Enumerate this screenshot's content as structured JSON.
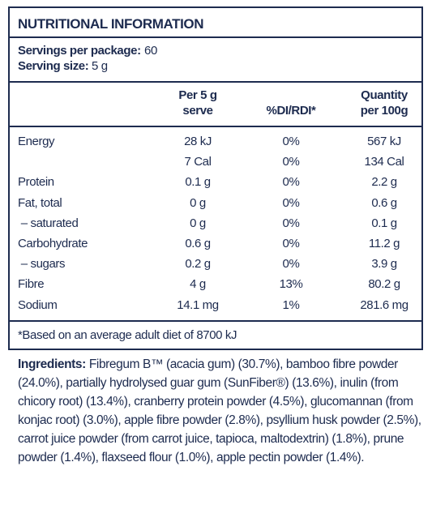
{
  "title": "NUTRITIONAL INFORMATION",
  "servings": [
    {
      "label": "Servings per package:",
      "value": "60"
    },
    {
      "label": "Serving size:",
      "value": "5 g"
    }
  ],
  "header": {
    "per_serve": [
      "Per 5 g",
      "serve"
    ],
    "di": "%DI/RDI*",
    "per100": [
      "Quantity",
      "per 100g"
    ]
  },
  "rows": [
    {
      "name": "Energy",
      "per_serve": "28 kJ",
      "di": "0%",
      "per100": "567 kJ"
    },
    {
      "per_serve": "7 Cal",
      "di": "0%",
      "per100": "134 Cal"
    },
    {
      "name": "Protein",
      "per_serve": "0.1 g",
      "di": "0%",
      "per100": "2.2 g"
    },
    {
      "name": "Fat, total",
      "per_serve": "0 g",
      "di": "0%",
      "per100": "0.6 g"
    },
    {
      "name": " – saturated",
      "per_serve": "0 g",
      "di": "0%",
      "per100": "0.1 g"
    },
    {
      "name": "Carbohydrate",
      "per_serve": "0.6 g",
      "di": "0%",
      "per100": "11.2 g"
    },
    {
      "name": " – sugars",
      "per_serve": "0.2 g",
      "di": "0%",
      "per100": "3.9 g"
    },
    {
      "name": "Fibre",
      "per_serve": "4 g",
      "di": "13%",
      "per100": "80.2 g"
    },
    {
      "name": "Sodium",
      "per_serve": "14.1 mg",
      "di": "1%",
      "per100": "281.6 mg"
    }
  ],
  "footnote": "*Based on an average adult diet of 8700 kJ",
  "ingredients": {
    "label": "Ingredients:",
    "text": "Fibregum B™ (acacia gum) (30.7%), bamboo fibre powder (24.0%), partially hydrolysed guar gum (SunFiber®) (13.6%), inulin (from chicory root) (13.4%), cranberry protein powder (4.5%), glucomannan (from konjac root) (3.0%), apple fibre powder (2.8%), psyllium husk powder (2.5%), carrot juice powder (from carrot juice, tapioca, maltodextrin) (1.8%), prune powder (1.4%), flaxseed flour (1.0%), apple pectin powder (1.4%)."
  }
}
